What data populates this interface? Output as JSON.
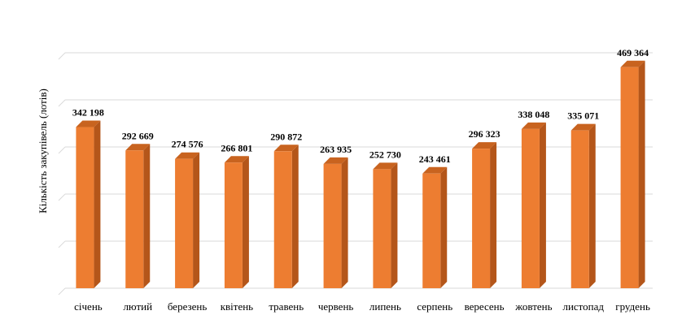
{
  "chart_data": {
    "type": "bar",
    "title": "",
    "xlabel": "",
    "ylabel": "Кількість закупівель (лотів)",
    "categories": [
      "січень",
      "лютий",
      "березень",
      "квітень",
      "травень",
      "червень",
      "липень",
      "серпень",
      "вересень",
      "жовтень",
      "листопад",
      "грудень"
    ],
    "values": [
      342198,
      292669,
      274576,
      266801,
      290872,
      263935,
      252730,
      243461,
      296323,
      338048,
      335071,
      469364
    ],
    "value_labels": [
      "342 198",
      "292 669",
      "274 576",
      "266 801",
      "290 872",
      "263 935",
      "252 730",
      "243 461",
      "296 323",
      "338 048",
      "335 071",
      "469 364"
    ],
    "ylim": [
      0,
      500000
    ],
    "grid": true,
    "legend": "none",
    "colors": {
      "bar_front": "#ED7D31",
      "bar_side": "#B4561A",
      "bar_top": "#C8631F",
      "grid": "#D9D9D9"
    }
  }
}
